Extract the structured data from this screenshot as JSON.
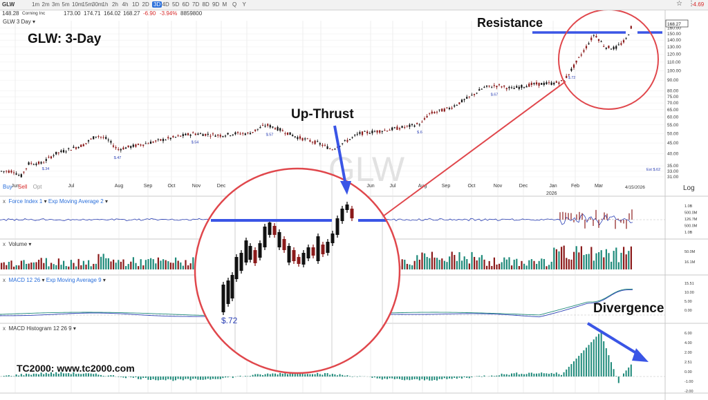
{
  "toolbar": {
    "symbol": "GLW",
    "timeframes": [
      "1m",
      "2m",
      "3m",
      "5m",
      "10m",
      "15m",
      "30m",
      "1h",
      "2h",
      "4h",
      "1D",
      "2D",
      "3D",
      "4D",
      "5D",
      "6D",
      "7D",
      "8D",
      "9D",
      "M",
      "Q",
      "Y"
    ],
    "active_timeframe": "3D",
    "alert_change": "-4.69"
  },
  "quote": {
    "last": "148.28",
    "company": "Corning Inc",
    "open": "173.00",
    "high": "174.71",
    "low": "164.02",
    "close": "168.27",
    "change": "-6.90",
    "change_pct": "-3.94%",
    "volume": "8859800"
  },
  "chart_title": "GLW 3 Day",
  "trade_buttons": {
    "buy": "Buy",
    "sell": "Sell",
    "opt": "Opt"
  },
  "price_axis": {
    "labels": [
      "160.00",
      "150.00",
      "140.00",
      "130.00",
      "120.00",
      "110.00",
      "100.00",
      "90.00",
      "80.00",
      "75.00",
      "70.00",
      "65.00",
      "60.00",
      "55.00",
      "50.00",
      "45.00",
      "40.00",
      "35.00",
      "33.00",
      "31.00"
    ],
    "current_price_tag": "168.27",
    "scale_label": "Log"
  },
  "time_axis": {
    "labels": [
      "Jun",
      "Jul",
      "Aug",
      "Sep",
      "Oct",
      "Nov",
      "Dec",
      "Jan",
      "Feb",
      "Mar",
      "Jun",
      "Jul",
      "Aug",
      "Sep",
      "Oct",
      "Nov",
      "Dec",
      "Jan",
      "Feb",
      "Mar"
    ],
    "year_label": "2026",
    "date_marker": "4/15/2026"
  },
  "dividends": [
    "$.34",
    "$.47",
    "$.54",
    "$.57",
    "$.6",
    "$.6",
    "$.67",
    "$.72"
  ],
  "earnings_marker": "Est $.62",
  "panels": {
    "force_index": {
      "label": "Force Index 1",
      "overlay": "Exp Moving Average 2",
      "axis": [
        "1.0B",
        "500.0M",
        "126.7M",
        "500.0M",
        "1.0B"
      ]
    },
    "volume": {
      "label": "Volume",
      "axis": [
        "50.0M",
        "16.1M"
      ]
    },
    "macd": {
      "label": "MACD 12 26",
      "overlay": "Exp Moving Average 9",
      "axis": [
        "15.51",
        "10.00",
        "5.00",
        "0.00"
      ]
    },
    "macd_hist": {
      "label": "MACD Histogram 12 26 9",
      "axis": [
        "6.00",
        "4.00",
        "2.00",
        "2.51",
        "0.00",
        "-1.00",
        "-2.00"
      ]
    }
  },
  "annotations": {
    "title": "GLW:  3-Day",
    "resistance": "Resistance",
    "up_thrust": "Up-Thrust",
    "divergence": "Divergence",
    "credit": "TC2000:  www.tc2000.com",
    "zoom_dividend": "$.72",
    "zoom_watermark": "GLW"
  },
  "colors": {
    "up": "#111111",
    "down": "#8b1a1a",
    "annotation_blue": "#3a55e6",
    "circle_red": "#e0474c",
    "histogram": "#1f8a7a",
    "macd_line": "#1f8a7a",
    "signal_line": "#2a3fb5"
  },
  "chart_data": {
    "type": "candlestick",
    "timeframe": "3-Day",
    "series": [
      {
        "name": "Price",
        "approx_path": [
          [
            0,
            33
          ],
          [
            20,
            33
          ],
          [
            30,
            31
          ],
          [
            42,
            36
          ],
          [
            60,
            36
          ],
          [
            80,
            40
          ],
          [
            100,
            42
          ],
          [
            120,
            44
          ],
          [
            140,
            49
          ],
          [
            155,
            47
          ],
          [
            170,
            42
          ],
          [
            200,
            44
          ],
          [
            240,
            47
          ],
          [
            280,
            50
          ],
          [
            320,
            49
          ],
          [
            340,
            50
          ],
          [
            360,
            50
          ],
          [
            385,
            55
          ],
          [
            400,
            53
          ],
          [
            430,
            48
          ],
          [
            460,
            45
          ],
          [
            480,
            42
          ],
          [
            520,
            50
          ],
          [
            560,
            52
          ],
          [
            590,
            54
          ],
          [
            610,
            56
          ],
          [
            620,
            62
          ],
          [
            650,
            66
          ],
          [
            680,
            75
          ],
          [
            700,
            83
          ],
          [
            720,
            85
          ],
          [
            740,
            82
          ],
          [
            770,
            86
          ],
          [
            800,
            87
          ],
          [
            815,
            89
          ],
          [
            830,
            105
          ],
          [
            860,
            150
          ],
          [
            875,
            130
          ],
          [
            890,
            128
          ],
          [
            905,
            140
          ],
          [
            915,
            168
          ]
        ]
      }
    ],
    "y_scale": "log",
    "ylim": [
      31,
      168.27
    ]
  }
}
